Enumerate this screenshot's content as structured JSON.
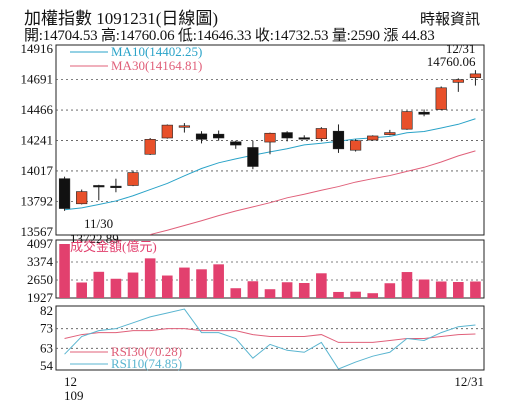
{
  "header": {
    "title": "加權指數 1091231(日線圖)",
    "source": "時報資訊",
    "ohlc": "開:14704.53 高:14760.06 低:14646.33 收:14732.53 量:2590 漲 44.83"
  },
  "colors": {
    "up": "#e8502a",
    "down": "#111111",
    "ma10": "#2aa3c8",
    "ma30": "#e0607a",
    "volume": "#e2406e",
    "rsi30": "#e0607a",
    "rsi10": "#5ab5d0",
    "grid": "#555555",
    "border": "#222222"
  },
  "chart_data": [
    {
      "type": "candlestick",
      "name": "price",
      "ylim": [
        13567,
        14916
      ],
      "y_ticks": [
        "14916",
        "14691",
        "14466",
        "14241",
        "14017",
        "13792",
        "13567"
      ],
      "x_labels": [
        "12",
        "109",
        "12/31"
      ],
      "grid": true,
      "annotations": {
        "high_date": "12/31",
        "high_value": "14760.06",
        "low_date": "11/30",
        "low_value": "13722.89"
      },
      "ma": [
        {
          "label": "MA10(14402.25)",
          "values": [
            13731,
            13745,
            13770,
            13796,
            13834,
            13880,
            13925,
            13981,
            14035,
            14077,
            14106,
            14133,
            14158,
            14181,
            14209,
            14221,
            14236,
            14253,
            14261,
            14272,
            14299,
            14308,
            14334,
            14361,
            14402
          ]
        },
        {
          "label": "MA30(14164.81)",
          "values": [
            13430,
            13450,
            13472,
            13496,
            13520,
            13548,
            13580,
            13615,
            13650,
            13688,
            13722,
            13752,
            13783,
            13819,
            13845,
            13875,
            13902,
            13935,
            13960,
            13983,
            14014,
            14044,
            14083,
            14128,
            14165
          ]
        }
      ],
      "candles": [
        {
          "o": 13960,
          "h": 13975,
          "l": 13722.89,
          "c": 13740
        },
        {
          "o": 13775,
          "h": 13880,
          "l": 13770,
          "c": 13865
        },
        {
          "o": 13910,
          "h": 13915,
          "l": 13800,
          "c": 13905
        },
        {
          "o": 13905,
          "h": 13960,
          "l": 13860,
          "c": 13898
        },
        {
          "o": 13910,
          "h": 14020,
          "l": 13905,
          "c": 14005
        },
        {
          "o": 14140,
          "h": 14260,
          "l": 14135,
          "c": 14250
        },
        {
          "o": 14260,
          "h": 14360,
          "l": 14255,
          "c": 14355
        },
        {
          "o": 14340,
          "h": 14370,
          "l": 14300,
          "c": 14350
        },
        {
          "o": 14290,
          "h": 14310,
          "l": 14220,
          "c": 14250
        },
        {
          "o": 14288,
          "h": 14315,
          "l": 14240,
          "c": 14260
        },
        {
          "o": 14232,
          "h": 14240,
          "l": 14180,
          "c": 14208
        },
        {
          "o": 14190,
          "h": 14240,
          "l": 14030,
          "c": 14050
        },
        {
          "o": 14230,
          "h": 14300,
          "l": 14140,
          "c": 14295
        },
        {
          "o": 14300,
          "h": 14310,
          "l": 14235,
          "c": 14260
        },
        {
          "o": 14262,
          "h": 14280,
          "l": 14250,
          "c": 14260
        },
        {
          "o": 14255,
          "h": 14340,
          "l": 14235,
          "c": 14330
        },
        {
          "o": 14310,
          "h": 14360,
          "l": 14150,
          "c": 14180
        },
        {
          "o": 14170,
          "h": 14250,
          "l": 14160,
          "c": 14240
        },
        {
          "o": 14245,
          "h": 14280,
          "l": 14240,
          "c": 14275
        },
        {
          "o": 14285,
          "h": 14320,
          "l": 14280,
          "c": 14300
        },
        {
          "o": 14325,
          "h": 14460,
          "l": 14320,
          "c": 14455
        },
        {
          "o": 14450,
          "h": 14470,
          "l": 14420,
          "c": 14435
        },
        {
          "o": 14470,
          "h": 14640,
          "l": 14465,
          "c": 14630
        },
        {
          "o": 14670,
          "h": 14700,
          "l": 14600,
          "c": 14690
        },
        {
          "o": 14704.53,
          "h": 14760.06,
          "l": 14646.33,
          "c": 14732.53
        }
      ]
    },
    {
      "type": "bar",
      "name": "volume",
      "label": "成交金額(億元)",
      "ylim": [
        1927,
        4097
      ],
      "y_ticks": [
        "4097",
        "3374",
        "2650",
        "1927"
      ],
      "values": [
        4097,
        2550,
        2980,
        2700,
        2950,
        3520,
        2830,
        3150,
        3080,
        3280,
        2320,
        2600,
        2280,
        2560,
        2530,
        2920,
        2170,
        2180,
        2120,
        2520,
        2970,
        2670,
        2590,
        2570,
        2590
      ]
    },
    {
      "type": "line",
      "name": "rsi",
      "ylim": [
        54,
        82
      ],
      "y_ticks": [
        "82",
        "73",
        "63",
        "54"
      ],
      "series": [
        {
          "label": "RSI30(70.28)",
          "values": [
            68,
            70,
            71,
            71,
            72,
            72,
            73,
            73,
            72,
            72,
            72,
            70,
            69,
            69,
            69,
            70,
            66,
            66,
            66,
            67,
            68,
            68,
            69,
            70,
            70.28
          ]
        },
        {
          "label": "RSI10(74.85)",
          "values": [
            60,
            69,
            72,
            73,
            76,
            79,
            81,
            83,
            71,
            71,
            68,
            58,
            65,
            62,
            61,
            66,
            52,
            56,
            59,
            61,
            68,
            67,
            71,
            74,
            74.85
          ]
        }
      ]
    }
  ]
}
